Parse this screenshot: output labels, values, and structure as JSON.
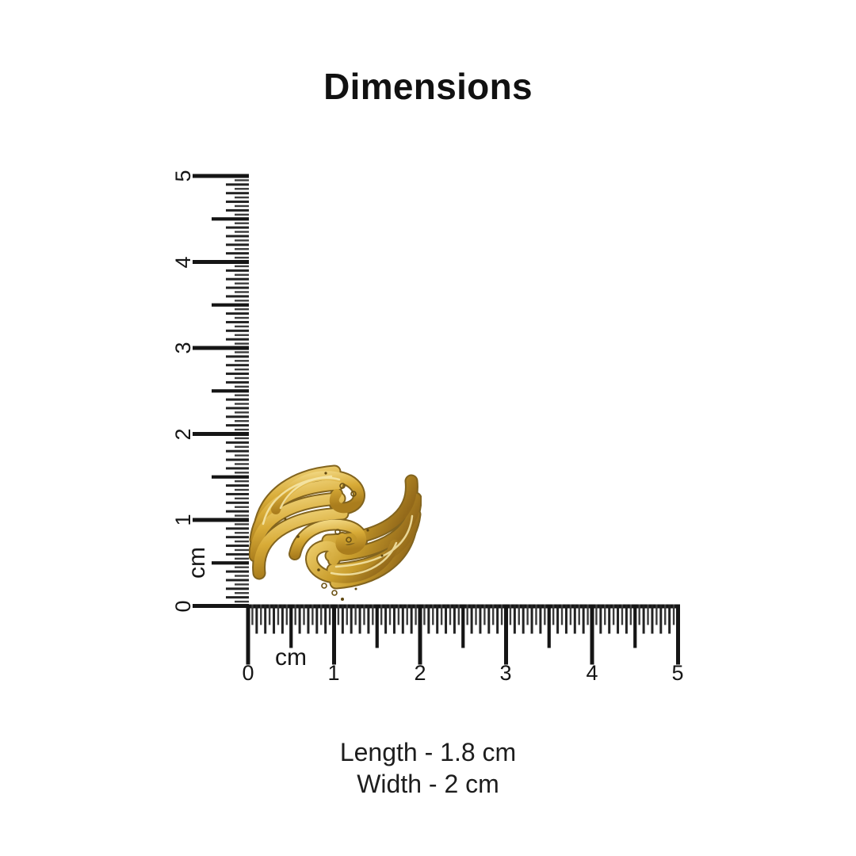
{
  "title": "Dimensions",
  "rulers": {
    "vertical": {
      "unit": "cm",
      "labels": [
        "5",
        "4",
        "3",
        "2",
        "1",
        "0"
      ]
    },
    "horizontal": {
      "unit": "cm",
      "labels": [
        "0",
        "1",
        "2",
        "3",
        "4",
        "5"
      ]
    }
  },
  "product": {
    "type": "gold ring",
    "length_label": "Length - 1.8 cm",
    "width_label": "Width - 2 cm"
  },
  "colors": {
    "text": "#161616",
    "tick": "#151515",
    "gold_highlight": "#f2d883",
    "gold_mid": "#d8ab37",
    "gold_shadow": "#8a6518",
    "background": "#ffffff"
  }
}
